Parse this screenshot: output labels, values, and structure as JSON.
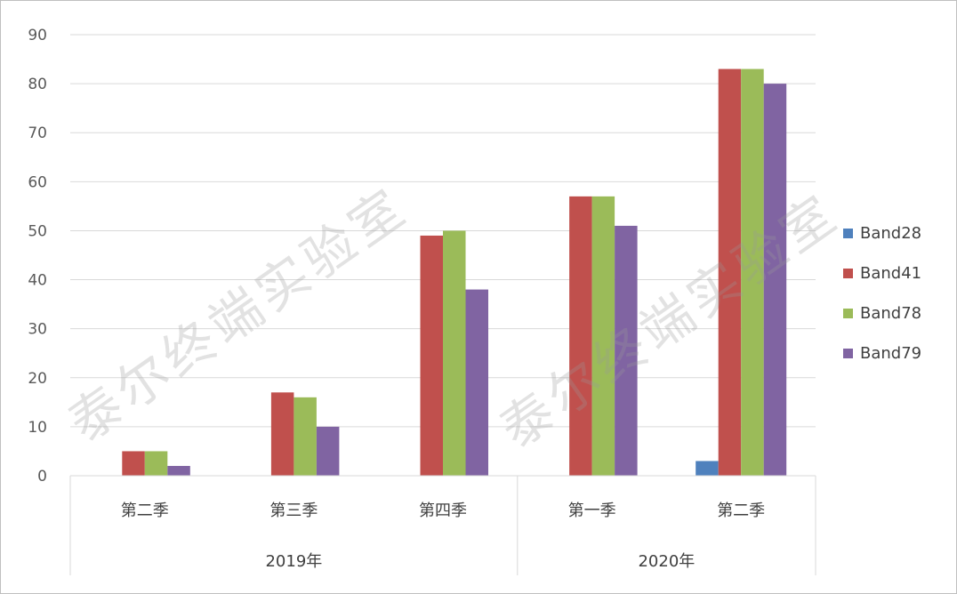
{
  "chart_data": {
    "type": "bar",
    "groups": [
      {
        "label": "2019年",
        "categories": [
          "第二季",
          "第三季",
          "第四季"
        ]
      },
      {
        "label": "2020年",
        "categories": [
          "第一季",
          "第二季"
        ]
      }
    ],
    "series": [
      {
        "name": "Band28",
        "color": "#4f81bd",
        "values": [
          0,
          0,
          0,
          0,
          3
        ]
      },
      {
        "name": "Band41",
        "color": "#c0504d",
        "values": [
          5,
          17,
          49,
          57,
          83
        ]
      },
      {
        "name": "Band78",
        "color": "#9bbb59",
        "values": [
          5,
          16,
          50,
          57,
          83
        ]
      },
      {
        "name": "Band79",
        "color": "#8064a2",
        "values": [
          2,
          10,
          38,
          51,
          80
        ]
      }
    ],
    "yticks": [
      0,
      10,
      20,
      30,
      40,
      50,
      60,
      70,
      80,
      90
    ],
    "ylim": [
      0,
      90
    ],
    "grid": true,
    "legend_position": "right"
  },
  "watermark": {
    "text": "泰尔终端实验室",
    "color": "#9a9a9a"
  }
}
